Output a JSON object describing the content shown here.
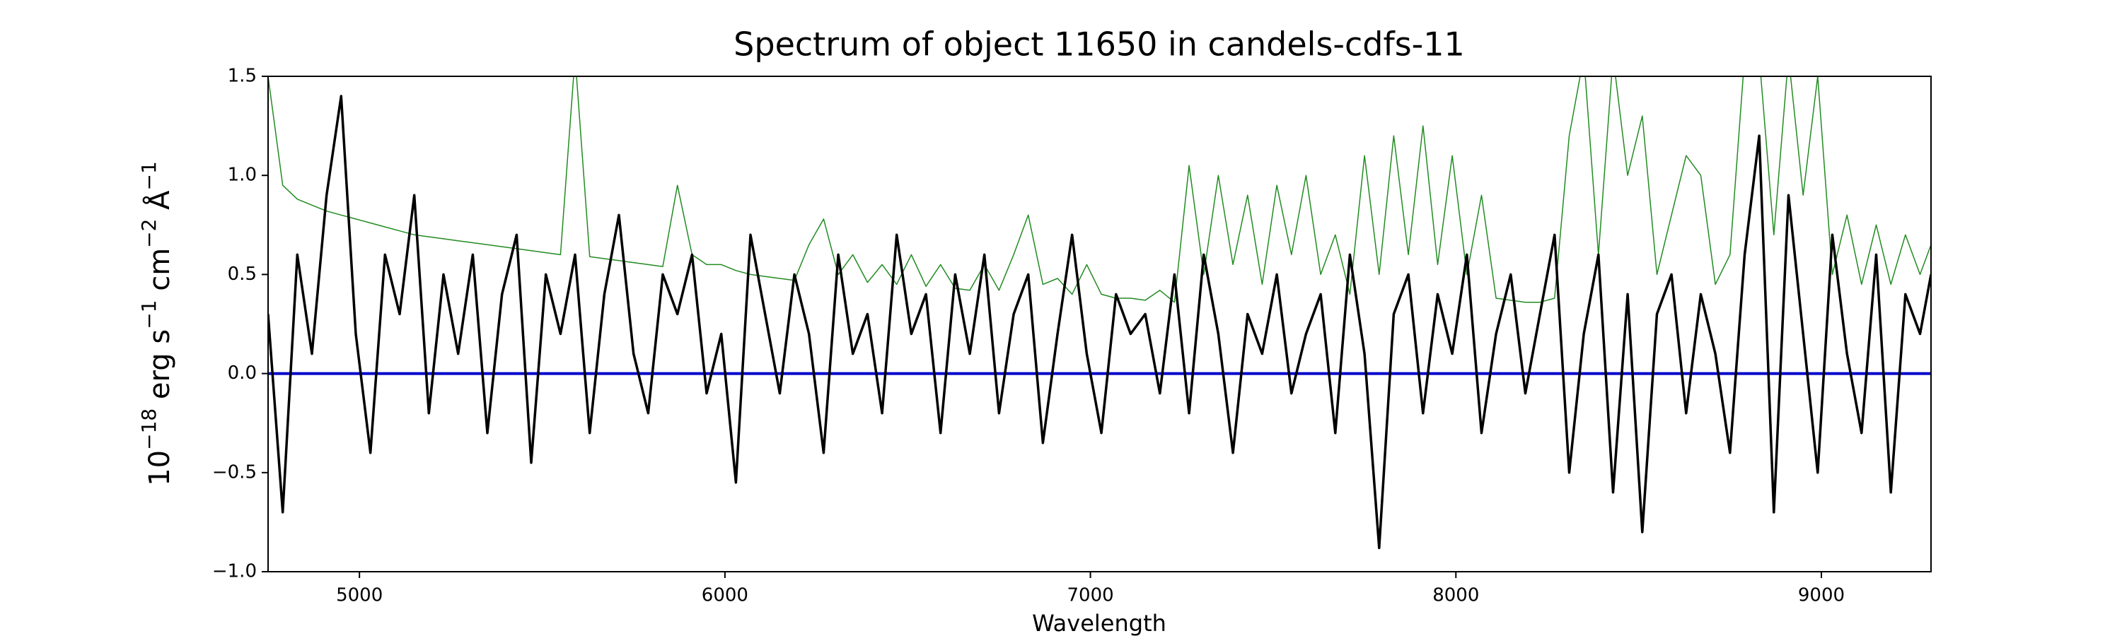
{
  "chart_data": {
    "type": "line",
    "title": "Spectrum of object 11650 in candels-cdfs-11",
    "xlabel": "Wavelength",
    "ylabel": [
      {
        "text": "10",
        "sup": false
      },
      {
        "text": "−18",
        "sup": true
      },
      {
        "text": " erg s",
        "sup": false
      },
      {
        "text": "−1",
        "sup": true
      },
      {
        "text": " cm",
        "sup": false
      },
      {
        "text": "−2",
        "sup": true
      },
      {
        "text": " Å",
        "sup": false
      },
      {
        "text": "−1",
        "sup": true
      }
    ],
    "x": [
      4750,
      4790,
      4830,
      4870,
      4910,
      4950,
      4990,
      5030,
      5070,
      5110,
      5150,
      5190,
      5230,
      5270,
      5310,
      5350,
      5390,
      5430,
      5470,
      5510,
      5550,
      5590,
      5630,
      5670,
      5710,
      5750,
      5790,
      5830,
      5870,
      5910,
      5950,
      5990,
      6030,
      6070,
      6110,
      6150,
      6190,
      6230,
      6270,
      6310,
      6350,
      6390,
      6430,
      6470,
      6510,
      6550,
      6590,
      6630,
      6670,
      6710,
      6750,
      6790,
      6830,
      6870,
      6910,
      6950,
      6990,
      7030,
      7070,
      7110,
      7150,
      7190,
      7230,
      7270,
      7310,
      7350,
      7390,
      7430,
      7470,
      7510,
      7550,
      7590,
      7630,
      7670,
      7710,
      7750,
      7790,
      7830,
      7870,
      7910,
      7950,
      7990,
      8030,
      8070,
      8110,
      8150,
      8190,
      8230,
      8270,
      8310,
      8350,
      8390,
      8430,
      8470,
      8510,
      8550,
      8590,
      8630,
      8670,
      8710,
      8750,
      8790,
      8830,
      8870,
      8910,
      8950,
      8990,
      9030,
      9070,
      9110,
      9150,
      9190,
      9230,
      9270,
      9300
    ],
    "series": [
      {
        "color": "#228b22",
        "width": 1.5,
        "values": [
          1.5,
          0.95,
          0.88,
          0.85,
          0.82,
          0.8,
          0.78,
          0.76,
          0.74,
          0.72,
          0.7,
          0.69,
          0.68,
          0.67,
          0.66,
          0.65,
          0.64,
          0.63,
          0.62,
          0.61,
          0.6,
          1.6,
          0.59,
          0.58,
          0.57,
          0.56,
          0.55,
          0.54,
          0.95,
          0.6,
          0.55,
          0.55,
          0.52,
          0.5,
          0.49,
          0.48,
          0.47,
          0.65,
          0.78,
          0.5,
          0.6,
          0.46,
          0.55,
          0.45,
          0.6,
          0.44,
          0.55,
          0.43,
          0.42,
          0.55,
          0.42,
          0.6,
          0.8,
          0.45,
          0.48,
          0.4,
          0.55,
          0.4,
          0.38,
          0.38,
          0.37,
          0.42,
          0.36,
          1.05,
          0.5,
          1.0,
          0.55,
          0.9,
          0.45,
          0.95,
          0.6,
          1.0,
          0.5,
          0.7,
          0.4,
          1.1,
          0.5,
          1.2,
          0.6,
          1.25,
          0.55,
          1.1,
          0.5,
          0.9,
          0.38,
          0.37,
          0.36,
          0.36,
          0.38,
          1.2,
          1.6,
          0.6,
          1.6,
          1.0,
          1.3,
          0.5,
          0.8,
          1.1,
          1.0,
          0.45,
          0.6,
          1.6,
          1.6,
          0.7,
          1.6,
          0.9,
          1.5,
          0.5,
          0.8,
          0.45,
          0.75,
          0.45,
          0.7,
          0.5,
          0.65
        ]
      },
      {
        "color": "#000000",
        "width": 3.5,
        "values": [
          0.3,
          -0.7,
          0.6,
          0.1,
          0.9,
          1.4,
          0.2,
          -0.4,
          0.6,
          0.3,
          0.9,
          -0.2,
          0.5,
          0.1,
          0.6,
          -0.3,
          0.4,
          0.7,
          -0.45,
          0.5,
          0.2,
          0.6,
          -0.3,
          0.4,
          0.8,
          0.1,
          -0.2,
          0.5,
          0.3,
          0.6,
          -0.1,
          0.2,
          -0.55,
          0.7,
          0.3,
          -0.1,
          0.5,
          0.2,
          -0.4,
          0.6,
          0.1,
          0.3,
          -0.2,
          0.7,
          0.2,
          0.4,
          -0.3,
          0.5,
          0.1,
          0.6,
          -0.2,
          0.3,
          0.5,
          -0.35,
          0.2,
          0.7,
          0.1,
          -0.3,
          0.4,
          0.2,
          0.3,
          -0.1,
          0.5,
          -0.2,
          0.6,
          0.2,
          -0.4,
          0.3,
          0.1,
          0.5,
          -0.1,
          0.2,
          0.4,
          -0.3,
          0.6,
          0.1,
          -0.88,
          0.3,
          0.5,
          -0.2,
          0.4,
          0.1,
          0.6,
          -0.3,
          0.2,
          0.5,
          -0.1,
          0.3,
          0.7,
          -0.5,
          0.2,
          0.6,
          -0.6,
          0.4,
          -0.8,
          0.3,
          0.5,
          -0.2,
          0.4,
          0.1,
          -0.4,
          0.6,
          1.2,
          -0.7,
          0.9,
          0.2,
          -0.5,
          0.7,
          0.1,
          -0.3,
          0.6,
          -0.6,
          0.4,
          0.2,
          0.5
        ]
      }
    ],
    "hline": {
      "value": 0,
      "color": "#0000cc"
    },
    "xlim": [
      4750,
      9300
    ],
    "xticks": [
      5000,
      6000,
      7000,
      8000,
      9000
    ],
    "ylim": [
      -1.0,
      1.5
    ],
    "yticks": [
      {
        "value": -1.0,
        "label": "−1.0"
      },
      {
        "value": -0.5,
        "label": "−0.5"
      },
      {
        "value": 0.0,
        "label": "0.0"
      },
      {
        "value": 0.5,
        "label": "0.5"
      },
      {
        "value": 1.0,
        "label": "1.0"
      },
      {
        "value": 1.5,
        "label": "1.5"
      }
    ],
    "grid": false
  }
}
